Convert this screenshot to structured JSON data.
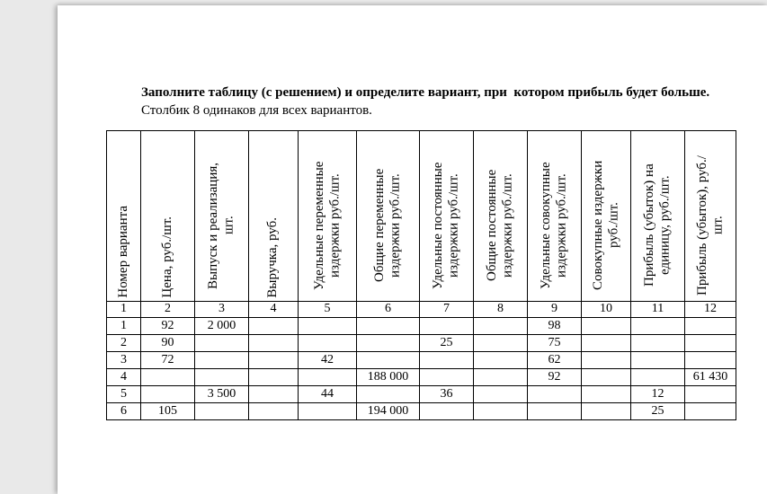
{
  "document": {
    "title": "Заполните таблицу (с решением) и определите вариант, при  котором прибыль будет больше.",
    "subtitle": "Столбик 8 одинаков для всех вариантов."
  },
  "table": {
    "headers": [
      "Номер варианта",
      "Цена, руб./шт.",
      "Выпуск и реализация, шт.",
      "Выручка, руб.",
      "Удельные переменные издержки руб./шт.",
      "Общие переменные издержки руб./шт.",
      "Удельные постоянные издержки руб./шт.",
      "Общие постоянные издержки руб./шт.",
      "Удельные совокупные издержки руб./шт.",
      "Совокупные издержки руб./шт.",
      "Прибыль (убыток) на единицу, руб./шт.",
      "Прибыль (убыток), руб./шт."
    ],
    "column_numbers": [
      "1",
      "2",
      "3",
      "4",
      "5",
      "6",
      "7",
      "8",
      "9",
      "10",
      "11",
      "12"
    ],
    "rows": [
      [
        "1",
        "92",
        "2 000",
        "",
        "",
        "",
        "",
        "",
        "98",
        "",
        "",
        ""
      ],
      [
        "2",
        "90",
        "",
        "",
        "",
        "",
        "25",
        "",
        "75",
        "",
        "",
        ""
      ],
      [
        "3",
        "72",
        "",
        "",
        "42",
        "",
        "",
        "",
        "62",
        "",
        "",
        ""
      ],
      [
        "4",
        "",
        "",
        "",
        "",
        "188 000",
        "",
        "",
        "92",
        "",
        "",
        "61 430"
      ],
      [
        "5",
        "",
        "3 500",
        "",
        "44",
        "",
        "36",
        "",
        "",
        "",
        "12",
        ""
      ],
      [
        "6",
        "105",
        "",
        "",
        "",
        "194 000",
        "",
        "",
        "",
        "",
        "25",
        ""
      ]
    ]
  },
  "colors": {
    "page_background": "#ffffff",
    "app_background": "#e9e9e9",
    "border": "#000000",
    "text": "#000000"
  }
}
